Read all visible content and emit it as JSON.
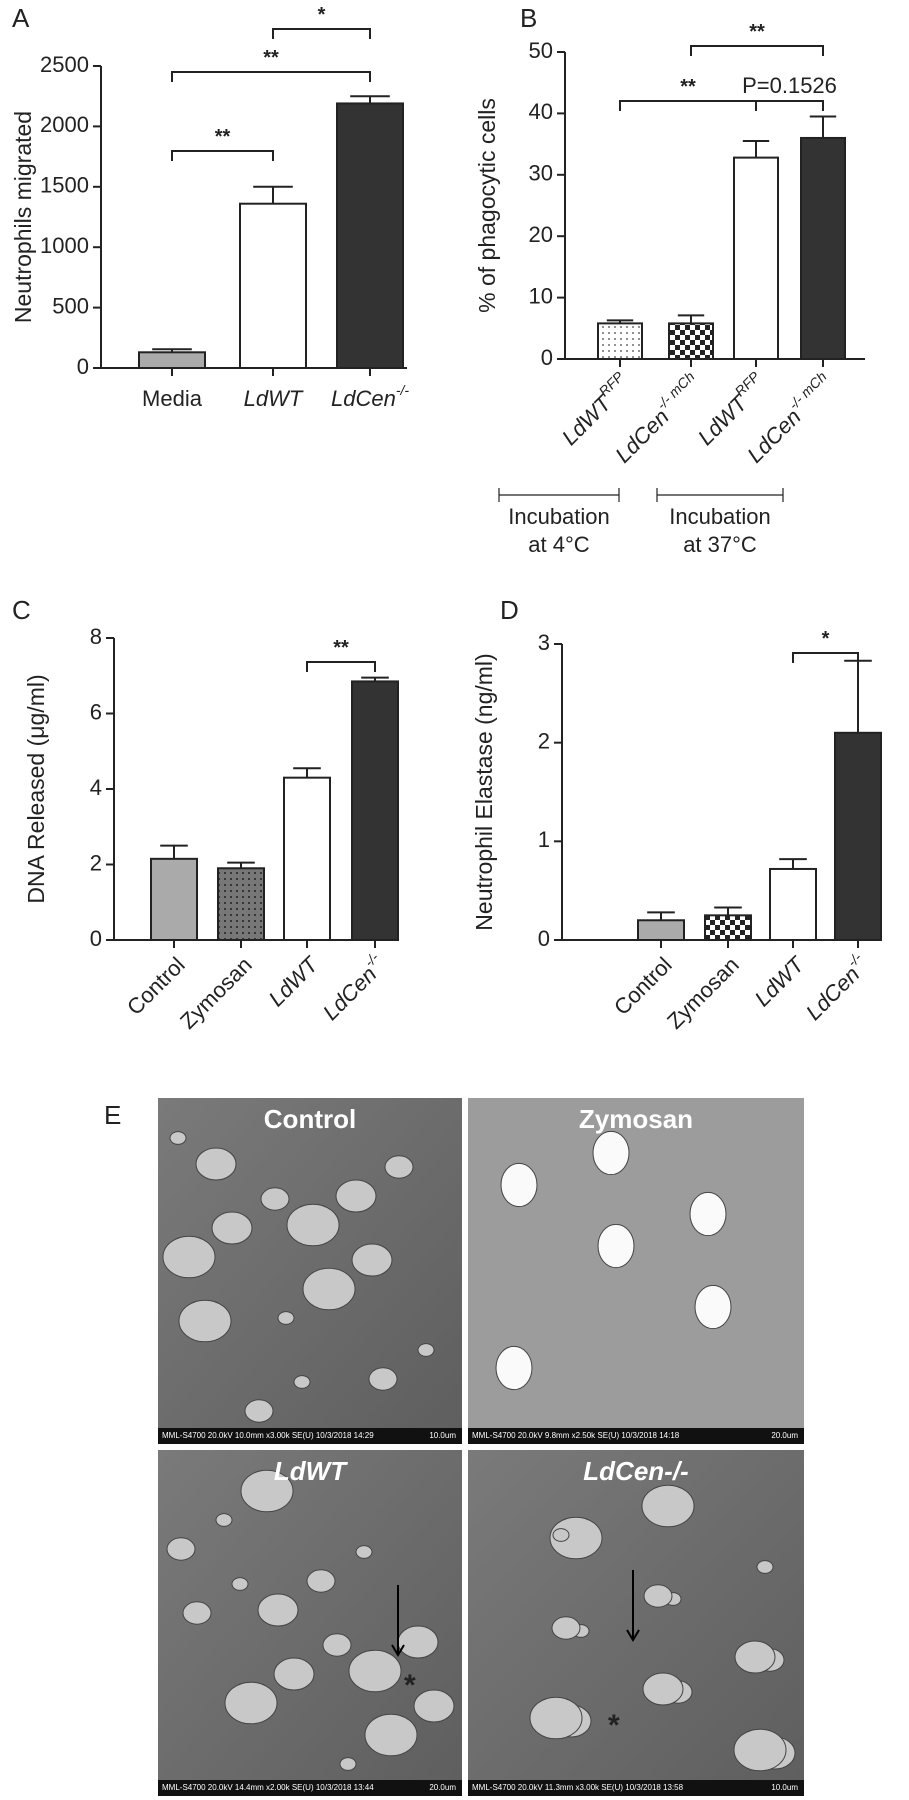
{
  "chart_data": [
    {
      "type": "bar",
      "label": "A",
      "ylabel": "Neutrophils migrated",
      "categories": [
        "Media",
        "LdWT",
        "LdCen"
      ],
      "category_superscripts": [
        null,
        null,
        "-/-"
      ],
      "values": [
        130,
        1360,
        2190
      ],
      "errors": [
        25,
        140,
        60
      ],
      "colors": [
        "#aaaaaa",
        "#ffffff",
        "#333333"
      ],
      "ylim": [
        0,
        2500
      ],
      "yticks": [
        0,
        500,
        1000,
        1500,
        2000,
        2500
      ],
      "annotations": [
        "*",
        "**",
        "**"
      ]
    },
    {
      "type": "bar",
      "label": "B",
      "ylabel": "% of phagocytic cells",
      "categories": [
        "LdWT",
        "LdCen",
        "LdWT",
        "LdCen"
      ],
      "category_superscripts": [
        "RFP",
        "-/- mCh",
        "RFP",
        "-/- mCh"
      ],
      "values": [
        5.8,
        5.8,
        32.8,
        36
      ],
      "errors": [
        0.5,
        1.3,
        2.7,
        3.5
      ],
      "colors": [
        "dots",
        "checker",
        "#ffffff",
        "#333333"
      ],
      "ylim": [
        0,
        50
      ],
      "yticks": [
        0,
        10,
        20,
        30,
        40,
        50
      ],
      "annotations": [
        "**",
        "**",
        "P=0.1526"
      ],
      "group_labels": [
        [
          "Incubation",
          "at 4°C"
        ],
        [
          "Incubation",
          "at 37°C"
        ]
      ]
    },
    {
      "type": "bar",
      "label": "C",
      "ylabel": "DNA Released (μg/ml)",
      "categories": [
        "Control",
        "Zymosan",
        "LdWT",
        "LdCen"
      ],
      "category_superscripts": [
        null,
        null,
        null,
        "-/-"
      ],
      "values": [
        2.15,
        1.9,
        4.3,
        6.85
      ],
      "errors": [
        0.35,
        0.15,
        0.25,
        0.1
      ],
      "colors": [
        "#aaaaaa",
        "dots-dark",
        "#ffffff",
        "#333333"
      ],
      "ylim": [
        0,
        8
      ],
      "yticks": [
        0,
        2,
        4,
        6,
        8
      ],
      "annotations": [
        "**"
      ]
    },
    {
      "type": "bar",
      "label": "D",
      "ylabel": "Neutrophil Elastase (ng/ml)",
      "categories": [
        "Control",
        "Zymosan",
        "LdWT",
        "LdCen"
      ],
      "category_superscripts": [
        null,
        null,
        null,
        "-/-"
      ],
      "values": [
        0.2,
        0.25,
        0.72,
        2.1
      ],
      "errors": [
        0.08,
        0.08,
        0.1,
        0.73
      ],
      "colors": [
        "#aaaaaa",
        "checker",
        "#ffffff",
        "#333333"
      ],
      "ylim": [
        0,
        3
      ],
      "yticks": [
        0,
        1,
        2,
        3
      ],
      "annotations": [
        "*"
      ]
    }
  ],
  "figure_e": {
    "label": "E",
    "micrographs": [
      {
        "label": "Control",
        "caption": "MML-S4700 20.0kV 10.0mm x3.00k SE(U) 10/3/2018 14:29",
        "scale": "10.0um"
      },
      {
        "label": "Zymosan",
        "caption": "MML-S4700 20.0kV 9.8mm x2.50k SE(U) 10/3/2018 14:18",
        "scale": "20.0um"
      },
      {
        "label": "LdWT",
        "caption": "MML-S4700 20.0kV 14.4mm x2.00k SE(U) 10/3/2018 13:44",
        "scale": "20.0um",
        "marker": "*"
      },
      {
        "label": "LdCen-/-",
        "caption": "MML-S4700 20.0kV 11.3mm x3.00k SE(U) 10/3/2018 13:58",
        "scale": "10.0um",
        "marker": "*"
      }
    ]
  }
}
